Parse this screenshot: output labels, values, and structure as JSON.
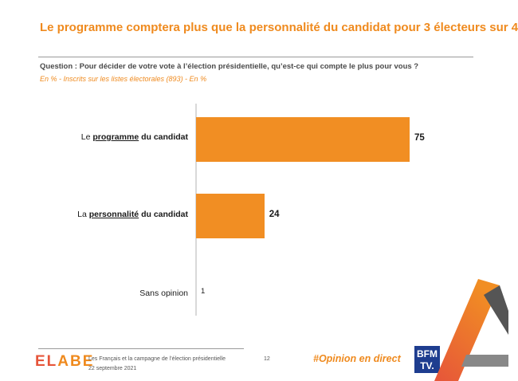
{
  "header": {
    "title": "Le programme comptera plus que la personnalité du candidat pour 3 électeurs sur 4",
    "question": "Question : Pour décider de votre vote à l’élection présidentielle, qu’est-ce qui compte le plus pour vous ?",
    "subtitle": "En % - Inscrits sur les listes électorales (893) - En %"
  },
  "chart_data": {
    "type": "bar",
    "orientation": "horizontal",
    "categories": [
      "Le programme du candidat",
      "La personnalité du candidat",
      "Sans opinion"
    ],
    "values": [
      75,
      24,
      1
    ],
    "xlim": [
      0,
      75
    ],
    "grid": false,
    "bar_color": "#f18e23"
  },
  "labels": {
    "cat0": {
      "pre": "Le ",
      "em": "programme",
      "post": " du candidat"
    },
    "cat1": {
      "pre": "La ",
      "em": "personnalité",
      "post": " du candidat"
    },
    "cat2": {
      "pre": "Sans opinion",
      "em": "",
      "post": ""
    }
  },
  "footer": {
    "logo_part1": "EL",
    "logo_part2": "ABE",
    "line1": "Les Français et la campagne de l’élection présidentielle",
    "line2": "22 septembre 2021",
    "page": "12",
    "hashtag": "#Opinion en direct",
    "bfm_line1": "BFM",
    "bfm_line2": "TV."
  },
  "colors": {
    "accent": "#ef8a1e",
    "bar": "#f18e23",
    "logo_red": "#e6553a",
    "bfm_blue": "#1e3d8f"
  }
}
